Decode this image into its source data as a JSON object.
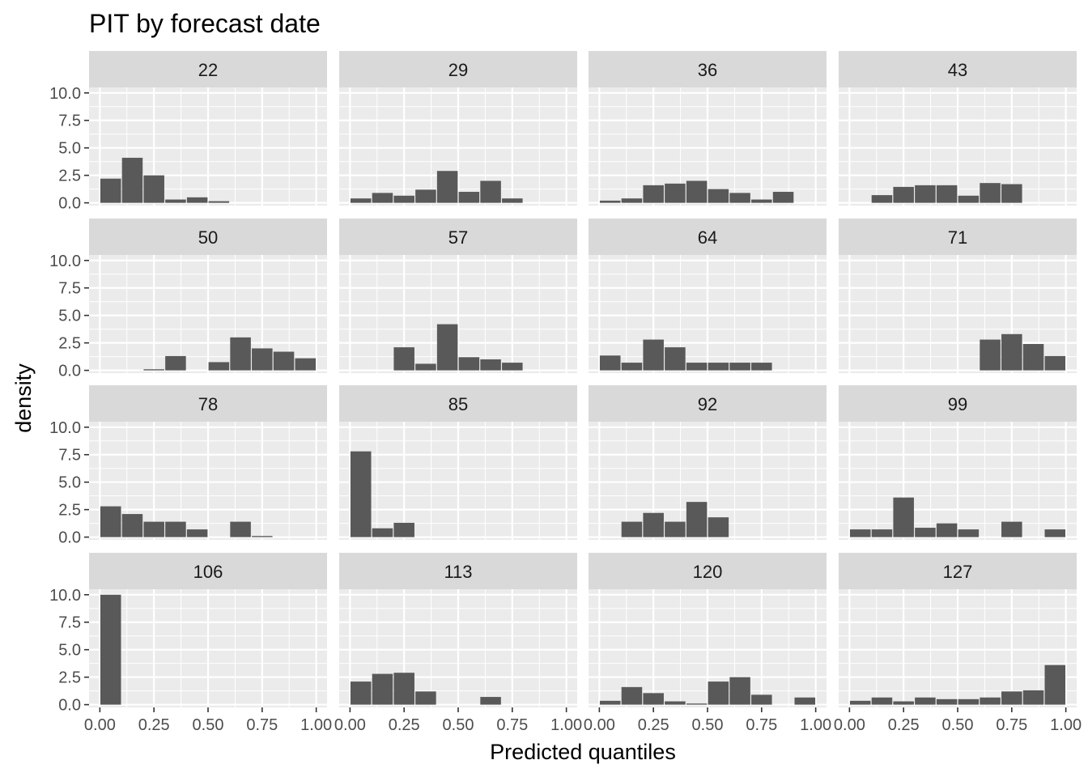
{
  "chart_data": {
    "type": "bar",
    "title": "PIT by forecast date",
    "xlabel": "Predicted quantiles",
    "ylabel": "density",
    "xlim": [
      -0.05,
      1.05
    ],
    "ylim": [
      -0.25,
      10.5
    ],
    "x_ticks": [
      "0.00",
      "0.25",
      "0.50",
      "0.75",
      "1.00"
    ],
    "y_ticks": [
      "0.0",
      "2.5",
      "5.0",
      "7.5",
      "10.0"
    ],
    "bin_width": 0.1,
    "bin_centers": [
      0.05,
      0.15,
      0.25,
      0.35,
      0.45,
      0.55,
      0.65,
      0.75,
      0.85,
      0.95
    ],
    "grid": true,
    "facets": [
      {
        "label": "22",
        "values": [
          2.2,
          4.1,
          2.5,
          0.3,
          0.5,
          0.15,
          0,
          0,
          0,
          0
        ]
      },
      {
        "label": "29",
        "values": [
          0.4,
          0.9,
          0.65,
          1.2,
          2.9,
          1.0,
          2.0,
          0.4,
          0,
          0
        ]
      },
      {
        "label": "36",
        "values": [
          0.2,
          0.4,
          1.6,
          1.75,
          2.0,
          1.25,
          0.9,
          0.3,
          1.0,
          0
        ]
      },
      {
        "label": "43",
        "values": [
          0,
          0.7,
          1.45,
          1.6,
          1.6,
          0.65,
          1.8,
          1.7,
          0,
          0
        ]
      },
      {
        "label": "50",
        "values": [
          0,
          0,
          0.1,
          1.3,
          0,
          0.75,
          3.0,
          2.0,
          1.7,
          1.1
        ]
      },
      {
        "label": "57",
        "values": [
          0,
          0,
          2.1,
          0.6,
          4.2,
          1.2,
          1.0,
          0.7,
          0,
          0
        ]
      },
      {
        "label": "64",
        "values": [
          1.35,
          0.7,
          2.8,
          2.1,
          0.7,
          0.7,
          0.7,
          0.7,
          0,
          0
        ]
      },
      {
        "label": "71",
        "values": [
          0,
          0,
          0,
          0,
          0,
          0,
          2.8,
          3.3,
          2.4,
          1.3
        ]
      },
      {
        "label": "78",
        "values": [
          2.8,
          2.1,
          1.4,
          1.4,
          0.7,
          0,
          1.4,
          0.1,
          0,
          0
        ]
      },
      {
        "label": "85",
        "values": [
          7.8,
          0.8,
          1.3,
          0,
          0,
          0,
          0,
          0,
          0,
          0
        ]
      },
      {
        "label": "92",
        "values": [
          0,
          1.4,
          2.2,
          1.4,
          3.2,
          1.8,
          0,
          0,
          0,
          0
        ]
      },
      {
        "label": "99",
        "values": [
          0.7,
          0.7,
          3.6,
          0.85,
          1.25,
          0.7,
          0,
          1.4,
          0,
          0.7
        ]
      },
      {
        "label": "106",
        "values": [
          10.0,
          0,
          0,
          0,
          0,
          0,
          0,
          0,
          0,
          0
        ]
      },
      {
        "label": "113",
        "values": [
          2.1,
          2.8,
          2.9,
          1.2,
          0,
          0,
          0.7,
          0,
          0,
          0
        ]
      },
      {
        "label": "120",
        "values": [
          0.35,
          1.6,
          1.05,
          0.3,
          0.1,
          2.1,
          2.5,
          0.9,
          0,
          0.65
        ]
      },
      {
        "label": "127",
        "values": [
          0.35,
          0.65,
          0.3,
          0.65,
          0.5,
          0.5,
          0.65,
          1.2,
          1.3,
          3.6
        ]
      }
    ]
  },
  "colors": {
    "panel_background": "#ebebeb",
    "strip_background": "#d9d9d9",
    "grid": "#ffffff",
    "bar": "#595959",
    "text": "#000000",
    "tick_text": "#4d4d4d"
  }
}
